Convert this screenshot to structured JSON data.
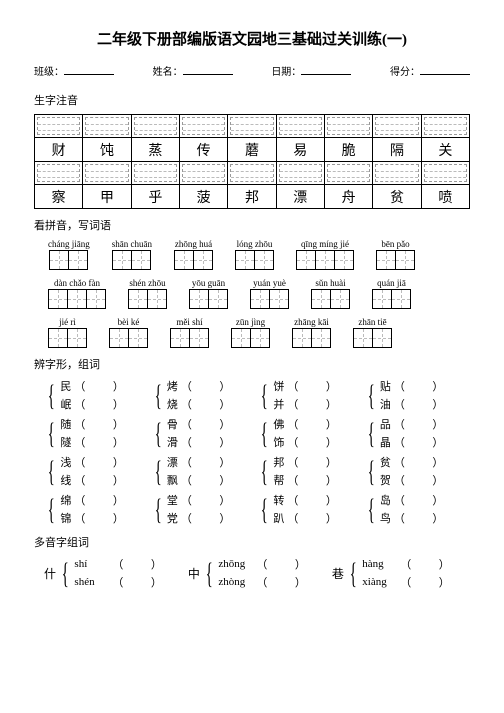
{
  "title": "二年级下册部编版语文园地三基础过关训练(一)",
  "info": {
    "class": "班级：",
    "name": "姓名：",
    "date": "日期：",
    "score": "得分："
  },
  "section1": {
    "label": "生字注音",
    "row1": [
      "财",
      "饨",
      "蒸",
      "传",
      "蘑",
      "易",
      "脆",
      "隔",
      "关"
    ],
    "row2": [
      "察",
      "甲",
      "乎",
      "菠",
      "邦",
      "漂",
      "舟",
      "贫",
      "喷"
    ]
  },
  "section2": {
    "label": "看拼音，写词语",
    "words": [
      {
        "p": "cháng jiāng",
        "n": 2
      },
      {
        "p": "shān chuān",
        "n": 2
      },
      {
        "p": "zhōng huá",
        "n": 2
      },
      {
        "p": "lóng zhōu",
        "n": 2
      },
      {
        "p": "qīng míng jié",
        "n": 3
      },
      {
        "p": "bēn pǎo",
        "n": 2
      },
      {
        "p": "dàn chǎo fàn",
        "n": 3
      },
      {
        "p": "shén zhōu",
        "n": 2
      },
      {
        "p": "yōu guān",
        "n": 2
      },
      {
        "p": "yuán yuè",
        "n": 2
      },
      {
        "p": "sǔn huài",
        "n": 2
      },
      {
        "p": "quán jiā",
        "n": 2
      },
      {
        "p": "jié rì",
        "n": 2
      },
      {
        "p": "bèi ké",
        "n": 2
      },
      {
        "p": "měi shí",
        "n": 2
      },
      {
        "p": "zūn jìng",
        "n": 2
      },
      {
        "p": "zhāng kāi",
        "n": 2
      },
      {
        "p": "zhān tiē",
        "n": 2
      }
    ]
  },
  "section3": {
    "label": "辨字形，组词",
    "pairs": [
      [
        "民",
        "岷"
      ],
      [
        "烤",
        "烧"
      ],
      [
        "饼",
        "并"
      ],
      [
        "贴",
        "油"
      ],
      [
        "随",
        "隧"
      ],
      [
        "骨",
        "滑"
      ],
      [
        "佛",
        "饰"
      ],
      [
        "品",
        "晶"
      ],
      [
        "浅",
        "线"
      ],
      [
        "漂",
        "飘"
      ],
      [
        "邦",
        "帮"
      ],
      [
        "贫",
        "贺"
      ],
      [
        "绵",
        "锦"
      ],
      [
        "堂",
        "党"
      ],
      [
        "转",
        "趴"
      ],
      [
        "岛",
        "鸟"
      ]
    ]
  },
  "section4": {
    "label": "多音字组词",
    "items": [
      {
        "lead": "什",
        "rows": [
          [
            "shí"
          ],
          [
            "shén"
          ]
        ]
      },
      {
        "lead": "中",
        "rows": [
          [
            "zhōng"
          ],
          [
            "zhòng"
          ]
        ]
      },
      {
        "lead": "巷",
        "rows": [
          [
            "hàng"
          ],
          [
            "xiàng"
          ]
        ]
      }
    ]
  },
  "paren": "（          ）"
}
